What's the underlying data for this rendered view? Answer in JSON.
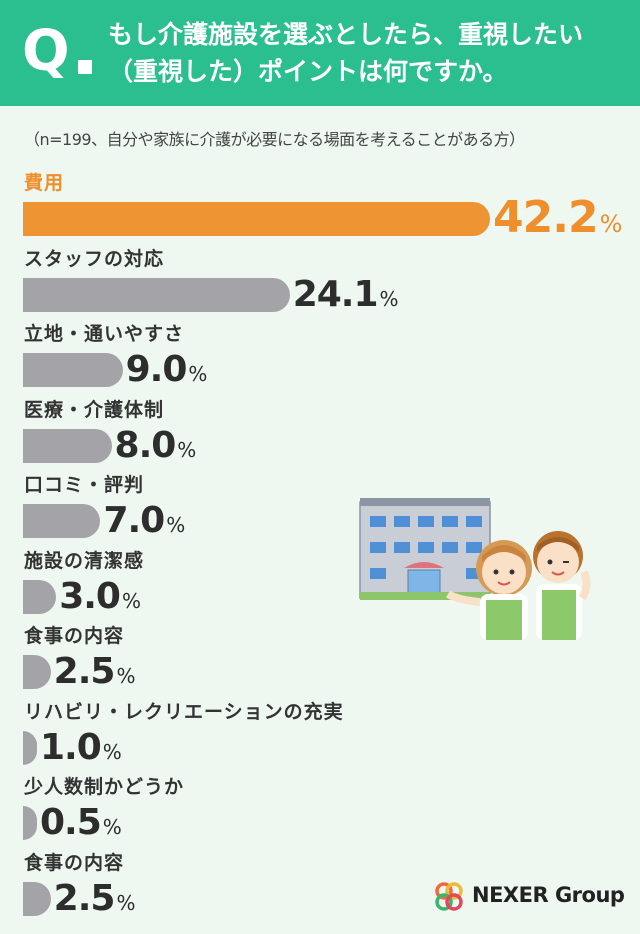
{
  "header": {
    "q_letter": "Q",
    "question": "もし介護施設を選ぶとしたら、重視したい（重視した）ポイントは何ですか。"
  },
  "sample_note": "（n=199、自分や家族に介護が必要になる場面を考えることがある方）",
  "brand": {
    "name": "NEXER Group"
  },
  "colors": {
    "header": "#2bbf8f",
    "highlight": "#ef9433",
    "bar": "#a3a3a8",
    "background": "#eef8f1"
  },
  "chart_data": {
    "type": "bar",
    "orientation": "horizontal",
    "unit": "%",
    "categories": [
      "費用",
      "スタッフの対応",
      "立地・通いやすさ",
      "医療・介護体制",
      "口コミ・評判",
      "施設の清潔感",
      "食事の内容",
      "リハビリ・レクリエーションの充実",
      "少人数制かどうか",
      "食事の内容"
    ],
    "values": [
      42.2,
      24.1,
      9.0,
      8.0,
      7.0,
      3.0,
      2.5,
      1.0,
      0.5,
      2.5
    ],
    "value_labels": [
      "42.2",
      "24.1",
      "9.0",
      "8.0",
      "7.0",
      "3.0",
      "2.5",
      "1.0",
      "0.5",
      "2.5"
    ],
    "highlight_index": 0
  }
}
